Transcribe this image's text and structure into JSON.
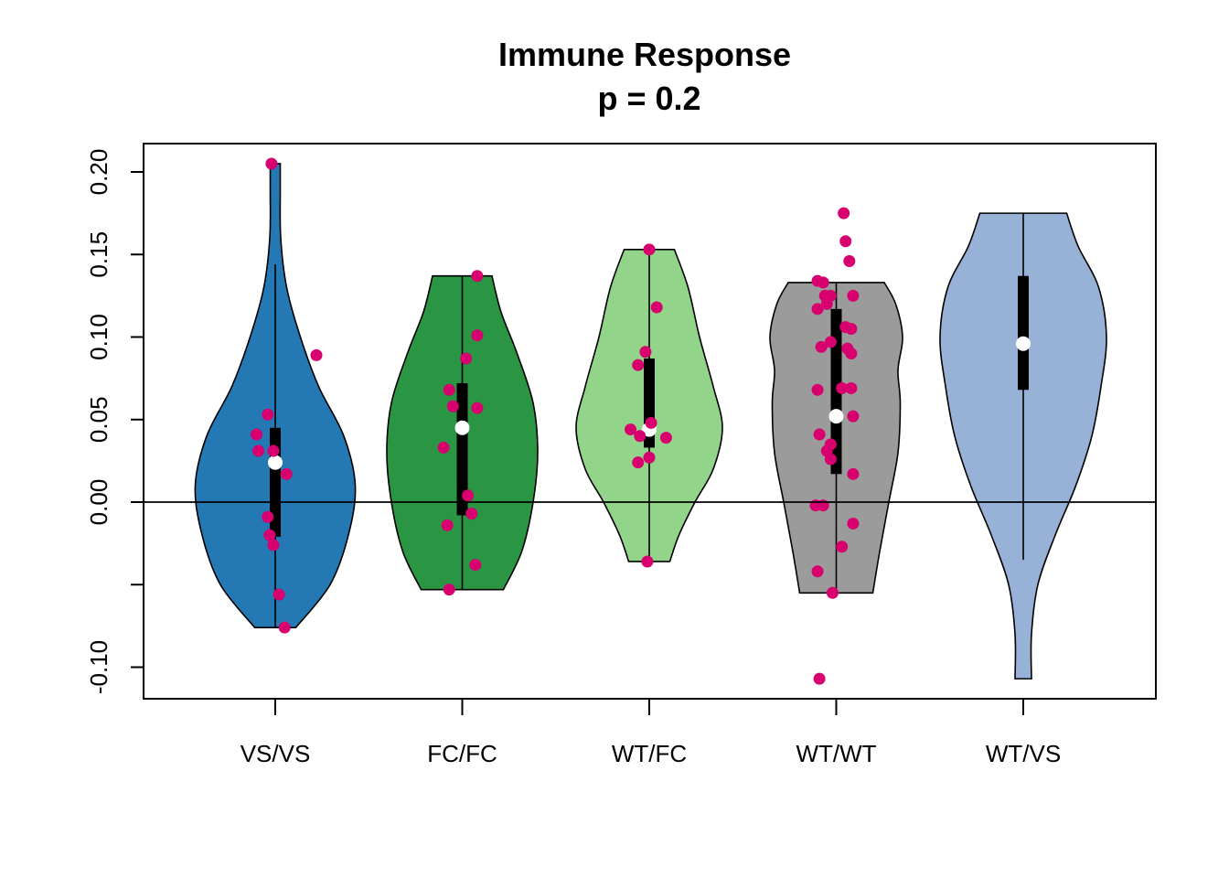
{
  "chart_data": {
    "type": "violin",
    "title": "Immune Response",
    "subtitle": "p = 0.2",
    "xlabel": "",
    "ylabel": "",
    "ylim": [
      -0.118,
      0.218
    ],
    "y_ticks": [
      -0.1,
      -0.05,
      0.0,
      0.05,
      0.1,
      0.15,
      0.2
    ],
    "y_tick_labels": [
      "-0.10",
      "",
      "0.00",
      "0.05",
      "0.10",
      "0.15",
      "0.20"
    ],
    "reference_line": 0.0,
    "grid": false,
    "categories": [
      "VS/VS",
      "FC/FC",
      "WT/FC",
      "WT/WT",
      "WT/VS"
    ],
    "groups": [
      {
        "name": "VS/VS",
        "color": "#2478b4",
        "min": -0.076,
        "max": 0.205,
        "whisker_low": -0.076,
        "whisker_high": 0.144,
        "q1": -0.021,
        "median": 0.024,
        "q3": 0.045,
        "density": [
          [
            -0.076,
            0.045
          ],
          [
            -0.05,
            0.12
          ],
          [
            -0.02,
            0.16
          ],
          [
            0.01,
            0.175
          ],
          [
            0.04,
            0.15
          ],
          [
            0.07,
            0.095
          ],
          [
            0.1,
            0.055
          ],
          [
            0.13,
            0.025
          ],
          [
            0.16,
            0.012
          ],
          [
            0.19,
            0.011
          ],
          [
            0.205,
            0.011
          ]
        ],
        "points": [
          [
            0.98,
            0.205
          ],
          [
            1.22,
            0.089
          ],
          [
            0.96,
            0.053
          ],
          [
            0.9,
            0.041
          ],
          [
            0.91,
            0.031
          ],
          [
            0.99,
            0.031
          ],
          [
            1.06,
            0.017
          ],
          [
            0.96,
            -0.009
          ],
          [
            0.97,
            -0.02
          ],
          [
            0.99,
            -0.026
          ],
          [
            1.02,
            -0.056
          ],
          [
            1.05,
            -0.076
          ]
        ]
      },
      {
        "name": "FC/FC",
        "color": "#2a9543",
        "min": -0.053,
        "max": 0.137,
        "whisker_low": -0.053,
        "whisker_high": 0.137,
        "q1": -0.008,
        "median": 0.045,
        "q3": 0.072,
        "density": [
          [
            -0.053,
            0.09
          ],
          [
            -0.03,
            0.13
          ],
          [
            0.0,
            0.155
          ],
          [
            0.03,
            0.165
          ],
          [
            0.06,
            0.155
          ],
          [
            0.09,
            0.12
          ],
          [
            0.115,
            0.085
          ],
          [
            0.137,
            0.065
          ]
        ],
        "points": [
          [
            1.93,
            -0.053
          ],
          [
            1.92,
            -0.014
          ],
          [
            2.07,
            -0.038
          ],
          [
            2.05,
            -0.007
          ],
          [
            2.03,
            0.004
          ],
          [
            1.9,
            0.033
          ],
          [
            2.08,
            0.057
          ],
          [
            1.95,
            0.058
          ],
          [
            1.93,
            0.068
          ],
          [
            2.02,
            0.087
          ],
          [
            2.08,
            0.101
          ],
          [
            2.08,
            0.137
          ]
        ]
      },
      {
        "name": "WT/FC",
        "color": "#92d48a",
        "min": -0.036,
        "max": 0.153,
        "whisker_low": -0.036,
        "whisker_high": 0.153,
        "q1": 0.033,
        "median": 0.044,
        "q3": 0.087,
        "density": [
          [
            -0.036,
            0.045
          ],
          [
            -0.02,
            0.065
          ],
          [
            0.0,
            0.1
          ],
          [
            0.02,
            0.14
          ],
          [
            0.045,
            0.16
          ],
          [
            0.07,
            0.14
          ],
          [
            0.1,
            0.11
          ],
          [
            0.13,
            0.085
          ],
          [
            0.153,
            0.055
          ]
        ],
        "points": [
          [
            3.0,
            0.153
          ],
          [
            3.04,
            0.118
          ],
          [
            2.98,
            0.091
          ],
          [
            2.94,
            0.083
          ],
          [
            3.01,
            0.048
          ],
          [
            2.9,
            0.044
          ],
          [
            2.95,
            0.04
          ],
          [
            3.09,
            0.039
          ],
          [
            3.0,
            0.027
          ],
          [
            2.94,
            0.024
          ],
          [
            2.99,
            -0.036
          ]
        ]
      },
      {
        "name": "WT/WT",
        "color": "#9b9b9b",
        "min": -0.055,
        "max": 0.133,
        "whisker_low": -0.055,
        "whisker_high": 0.133,
        "q1": 0.017,
        "median": 0.052,
        "q3": 0.117,
        "density": [
          [
            -0.055,
            0.08
          ],
          [
            -0.03,
            0.095
          ],
          [
            0.0,
            0.115
          ],
          [
            0.03,
            0.135
          ],
          [
            0.06,
            0.14
          ],
          [
            0.08,
            0.135
          ],
          [
            0.1,
            0.145
          ],
          [
            0.12,
            0.13
          ],
          [
            0.133,
            0.105
          ]
        ],
        "points": [
          [
            3.93,
            0.133
          ],
          [
            3.97,
            0.125
          ],
          [
            3.94,
            0.125
          ],
          [
            3.95,
            0.12
          ],
          [
            3.9,
            0.117
          ],
          [
            4.05,
            0.106
          ],
          [
            4.08,
            0.105
          ],
          [
            4.06,
            0.093
          ],
          [
            4.08,
            0.09
          ],
          [
            4.09,
            0.052
          ],
          [
            3.91,
            0.041
          ],
          [
            3.97,
            0.035
          ],
          [
            3.95,
            0.031
          ],
          [
            3.97,
            0.026
          ],
          [
            4.09,
            0.017
          ],
          [
            3.89,
            -0.002
          ],
          [
            3.93,
            -0.002
          ],
          [
            4.03,
            -0.027
          ],
          [
            3.9,
            -0.042
          ],
          [
            3.98,
            -0.055
          ]
        ]
      },
      {
        "name": "WT/VS",
        "color": "#98b1d7",
        "min": -0.107,
        "max": 0.175,
        "whisker_low": -0.035,
        "whisker_high": 0.175,
        "q1": 0.068,
        "median": 0.096,
        "q3": 0.137,
        "density": [
          [
            -0.107,
            0.018
          ],
          [
            -0.08,
            0.018
          ],
          [
            -0.05,
            0.032
          ],
          [
            -0.02,
            0.07
          ],
          [
            0.01,
            0.115
          ],
          [
            0.04,
            0.15
          ],
          [
            0.07,
            0.17
          ],
          [
            0.1,
            0.182
          ],
          [
            0.13,
            0.165
          ],
          [
            0.155,
            0.12
          ],
          [
            0.175,
            0.095
          ]
        ],
        "points": [
          [
            4.04,
            0.175
          ],
          [
            4.05,
            0.158
          ],
          [
            4.07,
            0.146
          ],
          [
            3.9,
            0.134
          ],
          [
            4.09,
            0.125
          ],
          [
            3.97,
            0.097
          ],
          [
            3.92,
            0.094
          ],
          [
            4.03,
            0.069
          ],
          [
            3.9,
            0.068
          ],
          [
            4.08,
            0.069
          ],
          [
            4.09,
            -0.013
          ],
          [
            3.91,
            -0.107
          ]
        ]
      }
    ],
    "point_color": "#d8006f",
    "median_color": "#ffffff",
    "box_color": "#000000"
  }
}
